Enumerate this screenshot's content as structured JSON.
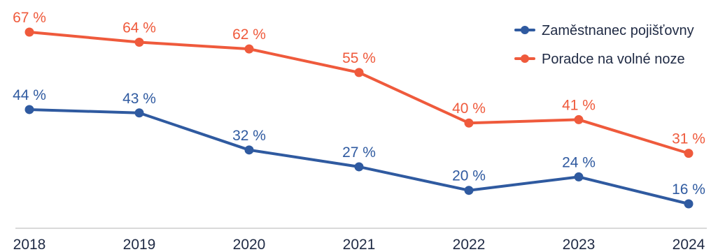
{
  "chart_data": {
    "type": "line",
    "x": [
      "2018",
      "2019",
      "2020",
      "2021",
      "2022",
      "2023",
      "2024"
    ],
    "series": [
      {
        "name": "Zaměstnanec pojišťovny",
        "values": [
          44,
          43,
          32,
          27,
          20,
          24,
          16
        ],
        "labels": [
          "44 %",
          "43 %",
          "32 %",
          "27 %",
          "20 %",
          "24 %",
          "16 %"
        ],
        "color": "#2f5aa0"
      },
      {
        "name": "Poradce na volné noze",
        "values": [
          67,
          64,
          62,
          55,
          40,
          41,
          31
        ],
        "labels": [
          "67 %",
          "64 %",
          "62 %",
          "55 %",
          "40 %",
          "41 %",
          "31 %"
        ],
        "color": "#ef5a3c"
      }
    ],
    "legend_position": "top-right",
    "grid": false,
    "ylim": [
      10,
      70
    ]
  }
}
